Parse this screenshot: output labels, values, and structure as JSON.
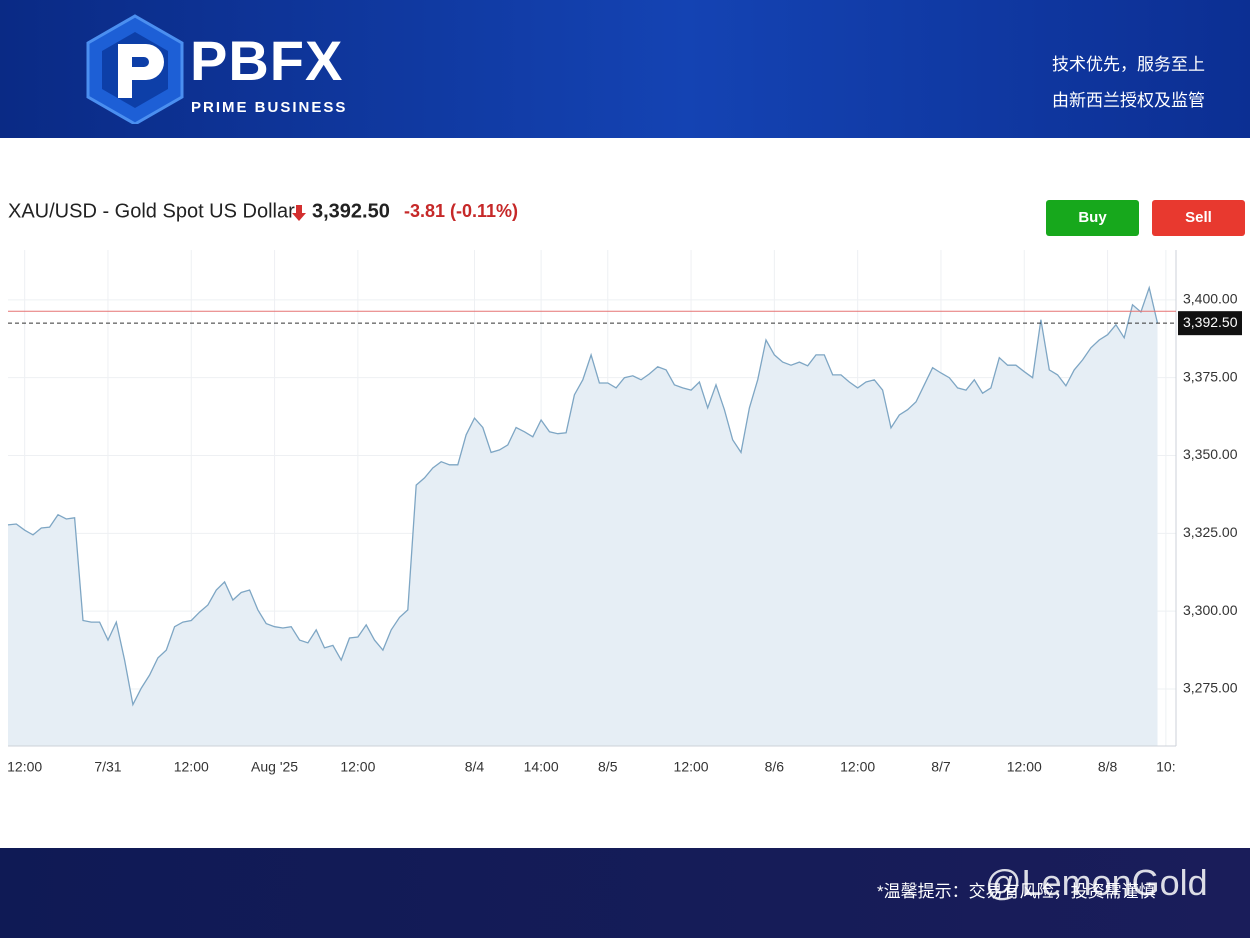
{
  "header": {
    "brand": "PBFX",
    "brand_sub": "PRIME BUSINESS",
    "slogan_1": "技术优先，服务至上",
    "slogan_2": "由新西兰授权及监管"
  },
  "buttons": {
    "buy": "Buy",
    "sell": "Sell"
  },
  "footer": {
    "note": "*温馨提示：交易有风险，投资需谨慎",
    "watermark": "@LemonGold"
  },
  "chart_data": {
    "type": "area",
    "title": "XAU/USD - Gold Spot US Dollar",
    "price": {
      "value": 3392.5,
      "label": "3,392.50"
    },
    "change_label": "-3.81 (-0.11%)",
    "previous_close": 3396.31,
    "color": "#7ea6c4",
    "fill": "#e6eef5",
    "grid": true,
    "categories": [
      null,
      null,
      "12:00",
      null,
      null,
      null,
      null,
      null,
      null,
      null,
      null,
      null,
      "7/31",
      null,
      null,
      null,
      null,
      null,
      null,
      null,
      null,
      null,
      "12:00",
      null,
      null,
      null,
      null,
      null,
      null,
      null,
      null,
      null,
      "Aug '25",
      null,
      null,
      null,
      null,
      null,
      null,
      null,
      null,
      null,
      "12:00",
      null,
      null,
      null,
      null,
      null,
      null,
      null,
      null,
      null,
      null,
      null,
      null,
      null,
      "8/4",
      null,
      null,
      null,
      null,
      null,
      null,
      null,
      "14:00",
      null,
      null,
      null,
      null,
      null,
      null,
      null,
      "8/5",
      null,
      null,
      null,
      null,
      null,
      null,
      null,
      null,
      null,
      "12:00",
      null,
      null,
      null,
      null,
      null,
      null,
      null,
      null,
      null,
      "8/6",
      null,
      null,
      null,
      null,
      null,
      null,
      null,
      null,
      null,
      "12:00",
      null,
      null,
      null,
      null,
      null,
      null,
      null,
      null,
      null,
      "8/7",
      null,
      null,
      null,
      null,
      null,
      null,
      null,
      null,
      null,
      "12:00",
      null,
      null,
      null,
      null,
      null,
      null,
      null,
      null,
      null,
      "8/8",
      null,
      null,
      null,
      null,
      null,
      null,
      "10:"
    ],
    "values": [
      3327.7,
      3328,
      3326,
      3324.5,
      3326.7,
      3327,
      3331,
      3329.6,
      3330,
      3297,
      3296.5,
      3296.5,
      3290.7,
      3296.5,
      3284.3,
      3270,
      3275.3,
      3279.5,
      3285,
      3287.5,
      3295,
      3296.5,
      3297,
      3299.7,
      3302,
      3306.8,
      3309.4,
      3303.6,
      3306,
      3306.8,
      3300.4,
      3296,
      3295,
      3294.6,
      3295,
      3290.7,
      3289.8,
      3294,
      3288.2,
      3289,
      3284.3,
      3291.4,
      3291.7,
      3295.6,
      3290.7,
      3287.5,
      3294,
      3298,
      3300.4,
      3340.5,
      3342.8,
      3346,
      3348,
      3347,
      3347,
      3356.6,
      3362,
      3359,
      3351,
      3351.8,
      3353.4,
      3359,
      3357.6,
      3356,
      3361.4,
      3357.6,
      3357,
      3357.3,
      3369.5,
      3374.3,
      3382.3,
      3373.3,
      3373.3,
      3371.7,
      3375,
      3375.6,
      3374.3,
      3376.2,
      3378.5,
      3377.5,
      3372.7,
      3371.7,
      3371,
      3373.6,
      3365.3,
      3372.7,
      3364.7,
      3355,
      3351,
      3365.3,
      3374.3,
      3387.1,
      3382.3,
      3380,
      3379,
      3380,
      3378.8,
      3382.3,
      3382.3,
      3375.9,
      3375.9,
      3373.6,
      3371.7,
      3373.6,
      3374.3,
      3371,
      3358.9,
      3363,
      3364.7,
      3367.2,
      3372.7,
      3378.2,
      3376.5,
      3375,
      3371.7,
      3371,
      3374.3,
      3370,
      3371.7,
      3381.4,
      3379,
      3379,
      3376.9,
      3375,
      3393.6,
      3377.5,
      3375.9,
      3372.4,
      3377.5,
      3380.7,
      3384.6,
      3387.1,
      3388.8,
      3392,
      3387.8,
      3398.4,
      3396.1,
      3403.9,
      3392.5,
      null
    ],
    "ylim": [
      3256.7,
      3416
    ],
    "yticks": [
      {
        "value": 3275,
        "label": "3,275.00"
      },
      {
        "value": 3300,
        "label": "3,300.00"
      },
      {
        "value": 3325,
        "label": "3,325.00"
      },
      {
        "value": 3350,
        "label": "3,350.00"
      },
      {
        "value": 3375,
        "label": "3,375.00"
      },
      {
        "value": 3400,
        "label": "3,400.00"
      }
    ]
  }
}
